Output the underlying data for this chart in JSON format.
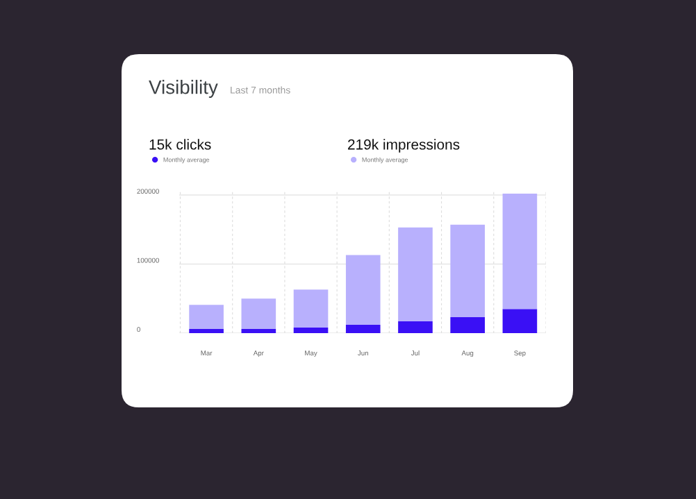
{
  "chart_data": {
    "type": "bar",
    "title": "Visibility",
    "subtitle": "Last 7 months",
    "annotations": [
      "15k clicks",
      "219k impressions"
    ],
    "categories": [
      "Mar",
      "Apr",
      "May",
      "Jun",
      "Jul",
      "Aug",
      "Sep"
    ],
    "series": [
      {
        "name": "Monthly average",
        "color": "#3a10f5",
        "values": [
          6000,
          6000,
          8000,
          12000,
          17000,
          23000,
          35000
        ]
      },
      {
        "name": "Monthly average",
        "color": "#b8b0fd",
        "values": [
          35000,
          44000,
          55000,
          101000,
          136000,
          134000,
          167000
        ]
      }
    ],
    "stacked": true,
    "ylim": [
      0,
      205000
    ],
    "yticks": [
      0,
      100000,
      200000
    ],
    "grid": true,
    "legend": "top"
  }
}
